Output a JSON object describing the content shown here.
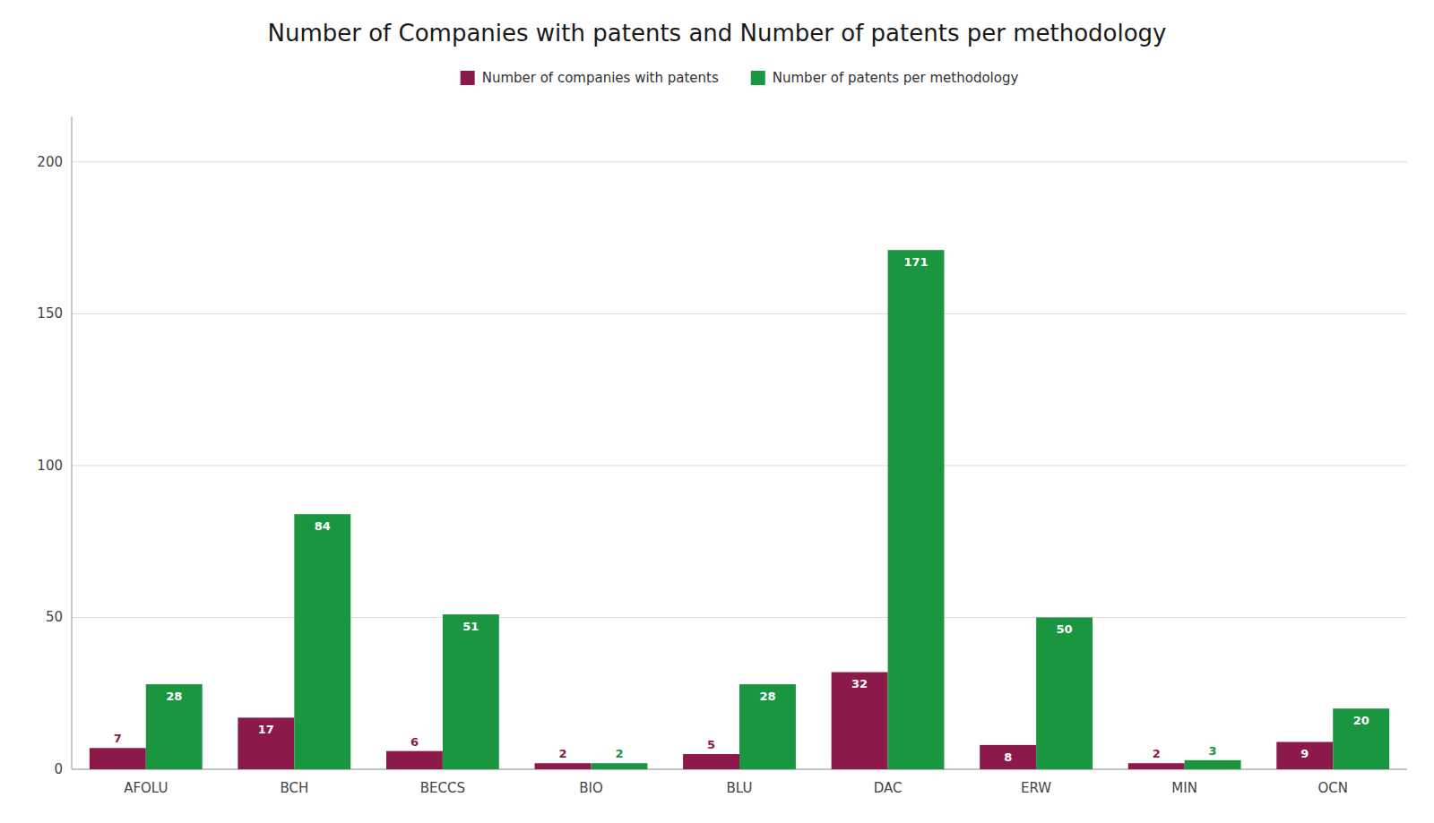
{
  "chart_data": {
    "type": "bar",
    "title": "Number of Companies with patents and Number of patents per methodology",
    "categories": [
      "AFOLU",
      "BCH",
      "BECCS",
      "BIO",
      "BLU",
      "DAC",
      "ERW",
      "MIN",
      "OCN"
    ],
    "series": [
      {
        "name": "Number of companies with patents",
        "color": "#8B1A4A",
        "values": [
          7,
          17,
          6,
          2,
          5,
          32,
          8,
          2,
          9
        ]
      },
      {
        "name": "Number of patents per methodology",
        "color": "#1A9641",
        "values": [
          28,
          84,
          51,
          2,
          28,
          171,
          50,
          3,
          20
        ]
      }
    ],
    "ylim": [
      0,
      215
    ],
    "yticks": [
      0,
      50,
      100,
      150,
      200
    ],
    "grid": true,
    "legend": "top",
    "data_labels": true
  }
}
